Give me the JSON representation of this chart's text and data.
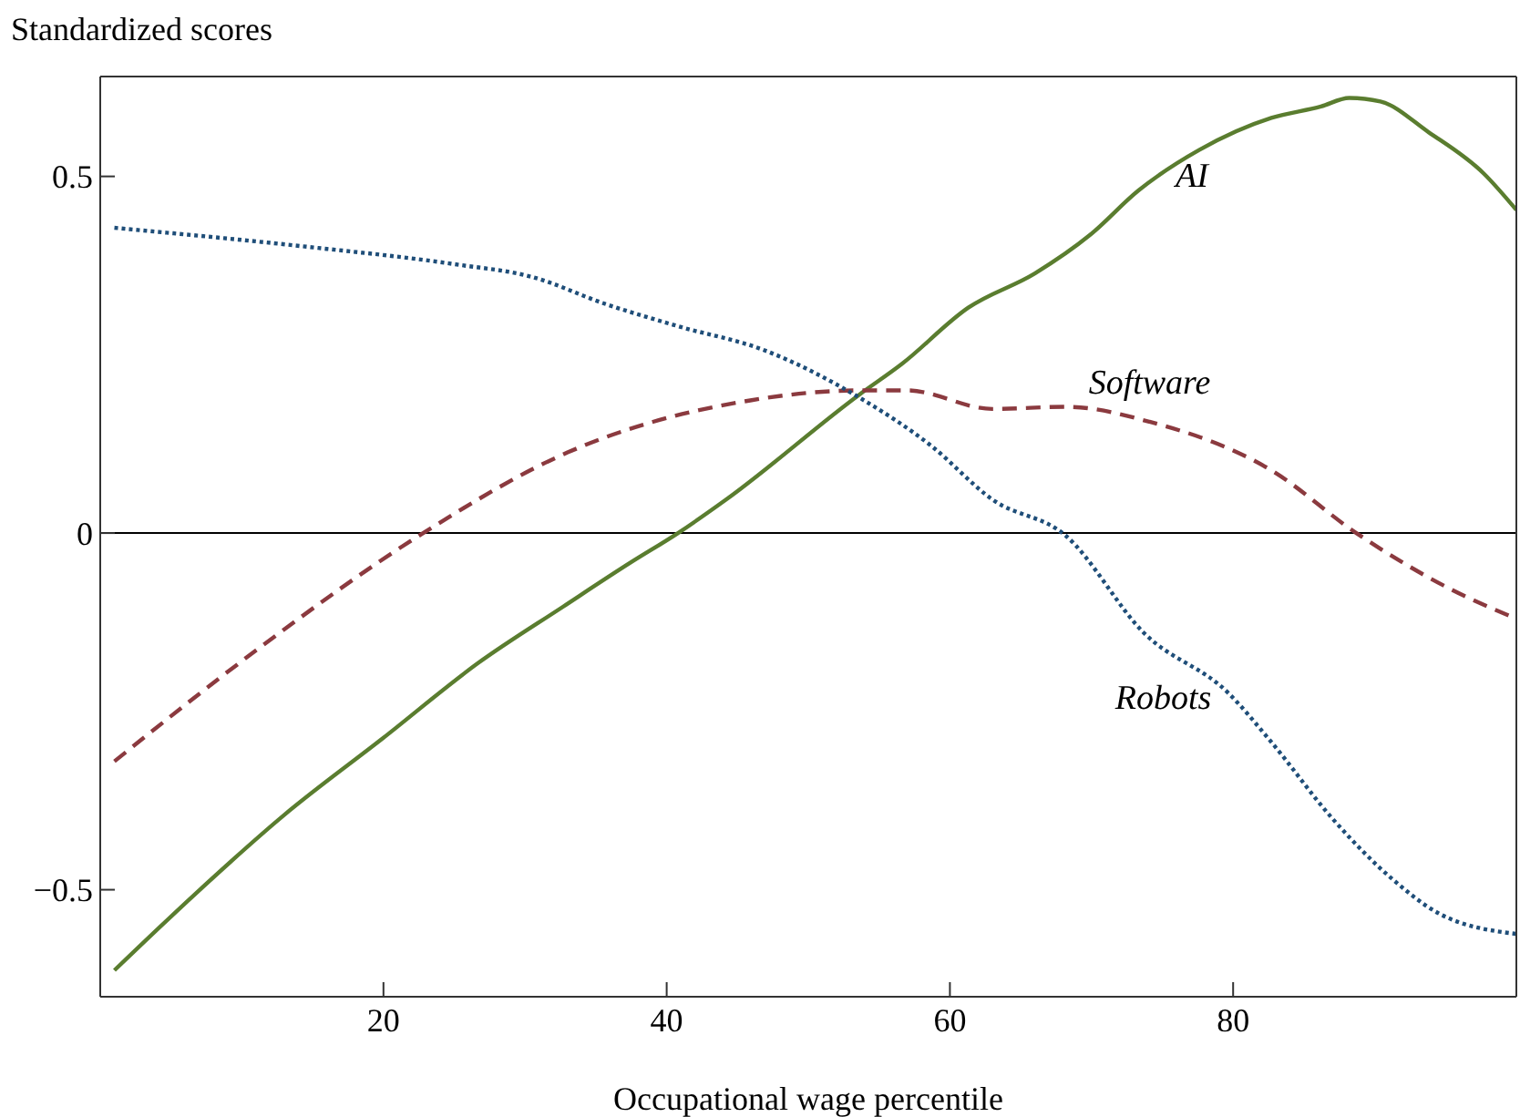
{
  "chart_data": {
    "type": "line",
    "xlabel": "Occupational wage percentile",
    "ylabel": "Standardized scores",
    "xlim": [
      0,
      100
    ],
    "xticks": [
      20,
      40,
      60,
      80
    ],
    "ylim": [
      -0.65,
      0.64
    ],
    "yticks": [
      {
        "value": -0.5,
        "label": "−0.5"
      },
      0,
      0.5
    ],
    "ref_lines": [
      {
        "axis": "y",
        "value": 0,
        "color": "#000000"
      }
    ],
    "marker": "none",
    "series": [
      {
        "name": "AI",
        "color": "#5a7d2f",
        "line_style": "solid",
        "x": [
          1,
          6.7,
          13,
          20,
          26.7,
          32.7,
          37.4,
          40.8,
          44.2,
          53.6,
          56.6,
          61.3,
          66,
          69.9,
          73.3,
          77.6,
          82.7,
          86.2,
          88.2,
          90.4,
          93.8,
          97.7,
          100
        ],
        "values": [
          -0.613,
          -0.506,
          -0.395,
          -0.287,
          -0.182,
          -0.103,
          -0.042,
          0,
          0.047,
          0.194,
          0.237,
          0.316,
          0.364,
          0.418,
          0.48,
          0.537,
          0.582,
          0.598,
          0.61,
          0.605,
          0.562,
          0.504,
          0.453
        ]
      },
      {
        "name": "Software",
        "color": "#8b3a3f",
        "line_style": "dashed",
        "x": [
          1,
          10.9,
          22.8,
          33,
          45.9,
          53.6,
          57,
          63,
          68.2,
          74.1,
          82.7,
          88.7,
          95.5,
          100
        ],
        "values": [
          -0.32,
          -0.166,
          0,
          0.113,
          0.186,
          0.2,
          0.2,
          0.174,
          0.177,
          0.156,
          0.088,
          0,
          -0.08,
          -0.12
        ]
      },
      {
        "name": "Robots",
        "color": "#1f4e79",
        "line_style": "dotted",
        "x": [
          1,
          14.3,
          25,
          30.5,
          35.7,
          40.8,
          46.8,
          53.6,
          58.7,
          63,
          68.2,
          73.7,
          79.7,
          82.7,
          87,
          91.3,
          94.6,
          100
        ],
        "values": [
          0.428,
          0.402,
          0.377,
          0.359,
          0.321,
          0.29,
          0.257,
          0.19,
          0.122,
          0.047,
          -0.004,
          -0.14,
          -0.225,
          -0.293,
          -0.4,
          -0.486,
          -0.534,
          -0.562
        ]
      }
    ]
  }
}
